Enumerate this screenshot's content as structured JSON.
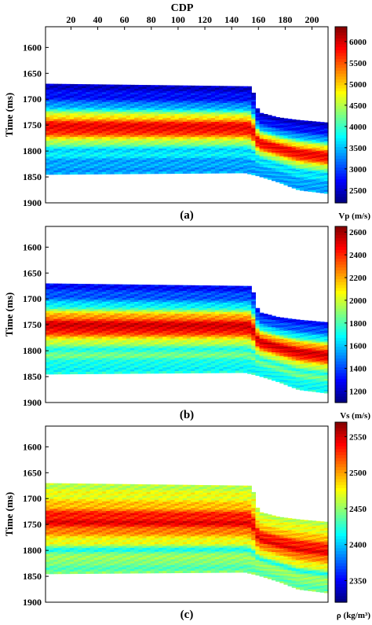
{
  "figure_top_label": "CDP",
  "chart_data": [
    {
      "type": "heatmap",
      "panel_label": "(a)",
      "ylabel": "Time (ms)",
      "xlabel": "CDP",
      "x_ticks": [
        20,
        40,
        60,
        80,
        100,
        120,
        140,
        160,
        180,
        200
      ],
      "y_ticks": [
        1600,
        1650,
        1700,
        1750,
        1800,
        1850,
        1900
      ],
      "xlim": [
        1,
        212
      ],
      "ylim": [
        1900,
        1560
      ],
      "colorbar_label": "Vp (m/s)",
      "colorbar_ticks": [
        2500,
        3000,
        3500,
        4000,
        4500,
        5000,
        5500,
        6000
      ],
      "colorbar_range": [
        2200,
        6350
      ],
      "colormap": "jet",
      "data_top_ms": [
        [
          1,
          1670
        ],
        [
          155,
          1675
        ],
        [
          160,
          1725
        ],
        [
          175,
          1735
        ],
        [
          190,
          1740
        ],
        [
          212,
          1745
        ]
      ],
      "data_bottom_ms": [
        [
          1,
          1845
        ],
        [
          150,
          1842
        ],
        [
          160,
          1848
        ],
        [
          175,
          1860
        ],
        [
          190,
          1875
        ],
        [
          212,
          1882
        ]
      ],
      "layers_vs_depth": [
        {
          "depth": 0.0,
          "value": 2500
        },
        {
          "depth": 0.12,
          "value": 2700
        },
        {
          "depth": 0.24,
          "value": 3300
        },
        {
          "depth": 0.34,
          "value": 4600
        },
        {
          "depth": 0.42,
          "value": 5600
        },
        {
          "depth": 0.5,
          "value": 6000
        },
        {
          "depth": 0.56,
          "value": 5400
        },
        {
          "depth": 0.64,
          "value": 4500
        },
        {
          "depth": 0.72,
          "value": 3700
        },
        {
          "depth": 0.82,
          "value": 3600
        },
        {
          "depth": 0.9,
          "value": 3300
        },
        {
          "depth": 1.0,
          "value": 3500
        }
      ]
    },
    {
      "type": "heatmap",
      "panel_label": "(b)",
      "ylabel": "Time (ms)",
      "xlabel": "",
      "x_ticks": [],
      "y_ticks": [
        1600,
        1650,
        1700,
        1750,
        1800,
        1850,
        1900
      ],
      "xlim": [
        1,
        212
      ],
      "ylim": [
        1900,
        1560
      ],
      "colorbar_label": "Vs (m/s)",
      "colorbar_ticks": [
        1200,
        1400,
        1600,
        1800,
        2000,
        2200,
        2400,
        2600
      ],
      "colorbar_range": [
        1100,
        2650
      ],
      "colormap": "jet",
      "data_top_ms": [
        [
          1,
          1670
        ],
        [
          155,
          1675
        ],
        [
          160,
          1725
        ],
        [
          175,
          1735
        ],
        [
          190,
          1740
        ],
        [
          212,
          1745
        ]
      ],
      "data_bottom_ms": [
        [
          1,
          1845
        ],
        [
          150,
          1842
        ],
        [
          160,
          1848
        ],
        [
          175,
          1860
        ],
        [
          190,
          1875
        ],
        [
          212,
          1882
        ]
      ],
      "layers_vs_depth": [
        {
          "depth": 0.0,
          "value": 1300
        },
        {
          "depth": 0.12,
          "value": 1400
        },
        {
          "depth": 0.24,
          "value": 1650
        },
        {
          "depth": 0.34,
          "value": 2150
        },
        {
          "depth": 0.42,
          "value": 2450
        },
        {
          "depth": 0.5,
          "value": 2550
        },
        {
          "depth": 0.56,
          "value": 2300
        },
        {
          "depth": 0.64,
          "value": 2000
        },
        {
          "depth": 0.72,
          "value": 1750
        },
        {
          "depth": 0.82,
          "value": 1850
        },
        {
          "depth": 0.9,
          "value": 1650
        },
        {
          "depth": 1.0,
          "value": 1750
        }
      ]
    },
    {
      "type": "heatmap",
      "panel_label": "(c)",
      "ylabel": "Time (ms)",
      "xlabel": "",
      "x_ticks": [],
      "y_ticks": [
        1600,
        1650,
        1700,
        1750,
        1800,
        1850,
        1900
      ],
      "xlim": [
        1,
        212
      ],
      "ylim": [
        1900,
        1560
      ],
      "colorbar_label": "ρ (kg/m³)",
      "colorbar_ticks": [
        2350,
        2400,
        2450,
        2500,
        2550
      ],
      "colorbar_range": [
        2320,
        2570
      ],
      "colormap": "jet",
      "data_top_ms": [
        [
          1,
          1670
        ],
        [
          155,
          1675
        ],
        [
          160,
          1725
        ],
        [
          175,
          1735
        ],
        [
          190,
          1740
        ],
        [
          212,
          1745
        ]
      ],
      "data_bottom_ms": [
        [
          1,
          1845
        ],
        [
          150,
          1842
        ],
        [
          160,
          1848
        ],
        [
          175,
          1860
        ],
        [
          190,
          1875
        ],
        [
          212,
          1882
        ]
      ],
      "layers_vs_depth": [
        {
          "depth": 0.0,
          "value": 2460
        },
        {
          "depth": 0.12,
          "value": 2470
        },
        {
          "depth": 0.24,
          "value": 2490
        },
        {
          "depth": 0.34,
          "value": 2530
        },
        {
          "depth": 0.42,
          "value": 2545
        },
        {
          "depth": 0.5,
          "value": 2520
        },
        {
          "depth": 0.58,
          "value": 2490
        },
        {
          "depth": 0.66,
          "value": 2470
        },
        {
          "depth": 0.74,
          "value": 2420
        },
        {
          "depth": 0.84,
          "value": 2460
        },
        {
          "depth": 0.92,
          "value": 2430
        },
        {
          "depth": 1.0,
          "value": 2450
        }
      ]
    }
  ]
}
